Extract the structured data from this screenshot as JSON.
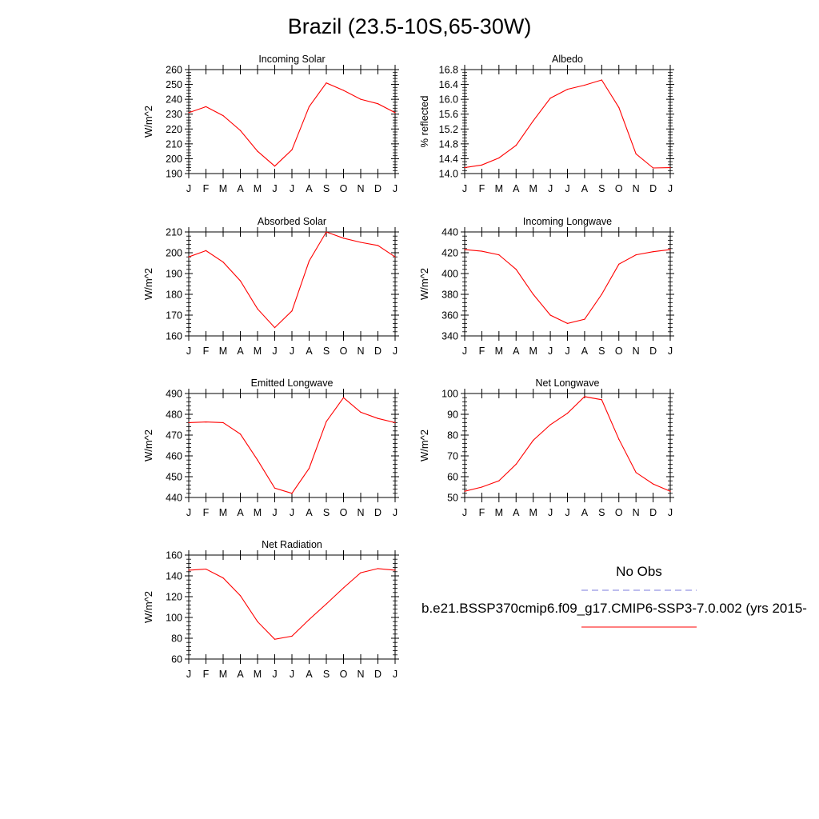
{
  "title": "Brazil (23.5-10S,65-30W)",
  "legend": {
    "obs_label": "No Obs",
    "obs_color": "#7b7bdc",
    "model_label": "b.e21.BSSP370cmip6.f09_g17.CMIP6-SSP3-7.0.002 (yrs 2015-",
    "model_color": "#ff0000"
  },
  "chart_data": [
    {
      "type": "line",
      "title": "Incoming Solar",
      "ylabel": "W/m^2",
      "ylim": [
        190,
        260
      ],
      "yticks": [
        190,
        200,
        210,
        220,
        230,
        240,
        250,
        260
      ],
      "ytick_labels": [
        "190",
        "200",
        "210",
        "220",
        "230",
        "240",
        "250",
        "260"
      ],
      "categories": [
        "J",
        "F",
        "M",
        "A",
        "M",
        "J",
        "J",
        "A",
        "S",
        "O",
        "N",
        "D",
        "J"
      ],
      "values": [
        231,
        235,
        229,
        219,
        205,
        195,
        206,
        235,
        251,
        246,
        240,
        237,
        231
      ],
      "color": "#ff0000"
    },
    {
      "type": "line",
      "title": "Albedo",
      "ylabel": "% reflected",
      "ylim": [
        14.0,
        16.8
      ],
      "yticks": [
        14.0,
        14.4,
        14.8,
        15.2,
        15.6,
        16.0,
        16.4,
        16.8
      ],
      "ytick_labels": [
        "14.0",
        "14.4",
        "14.8",
        "15.2",
        "15.6",
        "16.0",
        "16.4",
        "16.8"
      ],
      "categories": [
        "J",
        "F",
        "M",
        "A",
        "M",
        "J",
        "J",
        "A",
        "S",
        "O",
        "N",
        "D",
        "J"
      ],
      "values": [
        14.16,
        14.23,
        14.42,
        14.76,
        15.42,
        16.03,
        16.27,
        16.38,
        16.52,
        15.78,
        14.53,
        14.15,
        14.16
      ],
      "color": "#ff0000"
    },
    {
      "type": "line",
      "title": "Absorbed Solar",
      "ylabel": "W/m^2",
      "ylim": [
        160,
        210
      ],
      "yticks": [
        160,
        170,
        180,
        190,
        200,
        210
      ],
      "ytick_labels": [
        "160",
        "170",
        "180",
        "190",
        "200",
        "210"
      ],
      "categories": [
        "J",
        "F",
        "M",
        "A",
        "M",
        "J",
        "J",
        "A",
        "S",
        "O",
        "N",
        "D",
        "J"
      ],
      "values": [
        198,
        201,
        195.5,
        186.5,
        173,
        164,
        172,
        196,
        210,
        207,
        205,
        203.5,
        198
      ],
      "color": "#ff0000"
    },
    {
      "type": "line",
      "title": "Incoming Longwave",
      "ylabel": "W/m^2",
      "ylim": [
        340,
        440
      ],
      "yticks": [
        340,
        360,
        380,
        400,
        420,
        440
      ],
      "ytick_labels": [
        "340",
        "360",
        "380",
        "400",
        "420",
        "440"
      ],
      "categories": [
        "J",
        "F",
        "M",
        "A",
        "M",
        "J",
        "J",
        "A",
        "S",
        "O",
        "N",
        "D",
        "J"
      ],
      "values": [
        423,
        421.5,
        418,
        404,
        380,
        360,
        352,
        356,
        380,
        409,
        418,
        421,
        423
      ],
      "color": "#ff0000"
    },
    {
      "type": "line",
      "title": "Emitted Longwave",
      "ylabel": "W/m^2",
      "ylim": [
        440,
        490
      ],
      "yticks": [
        440,
        450,
        460,
        470,
        480,
        490
      ],
      "ytick_labels": [
        "440",
        "450",
        "460",
        "470",
        "480",
        "490"
      ],
      "categories": [
        "J",
        "F",
        "M",
        "A",
        "M",
        "J",
        "J",
        "A",
        "S",
        "O",
        "N",
        "D",
        "J"
      ],
      "values": [
        476,
        476.3,
        476,
        470.5,
        458,
        444.5,
        442,
        454,
        476.5,
        488,
        481,
        478,
        476
      ],
      "color": "#ff0000"
    },
    {
      "type": "line",
      "title": "Net Longwave",
      "ylabel": "W/m^2",
      "ylim": [
        50,
        100
      ],
      "yticks": [
        50,
        60,
        70,
        80,
        90,
        100
      ],
      "ytick_labels": [
        "50",
        "60",
        "70",
        "80",
        "90",
        "100"
      ],
      "categories": [
        "J",
        "F",
        "M",
        "A",
        "M",
        "J",
        "J",
        "A",
        "S",
        "O",
        "N",
        "D",
        "J"
      ],
      "values": [
        53,
        55,
        58,
        66,
        77.5,
        85,
        90.5,
        98.5,
        97,
        78,
        62,
        56.5,
        53
      ],
      "color": "#ff0000"
    },
    {
      "type": "line",
      "title": "Net Radiation",
      "ylabel": "W/m^2",
      "ylim": [
        60,
        160
      ],
      "yticks": [
        60,
        80,
        100,
        120,
        140,
        160
      ],
      "ytick_labels": [
        "60",
        "80",
        "100",
        "120",
        "140",
        "160"
      ],
      "categories": [
        "J",
        "F",
        "M",
        "A",
        "M",
        "J",
        "J",
        "A",
        "S",
        "O",
        "N",
        "D",
        "J"
      ],
      "values": [
        145.5,
        146.5,
        138,
        121,
        96,
        79,
        82,
        98,
        113,
        128.5,
        143,
        147,
        145.5
      ],
      "color": "#ff0000"
    }
  ]
}
